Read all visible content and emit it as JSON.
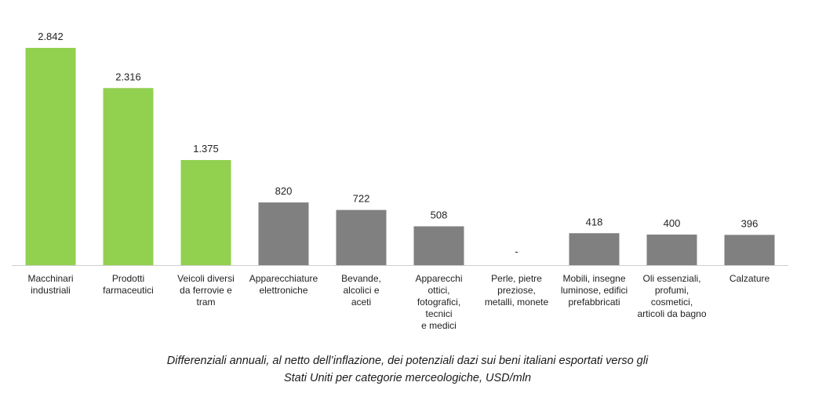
{
  "chart_data": {
    "type": "bar",
    "categories": [
      [
        "Macchinari",
        "industriali"
      ],
      [
        "Prodotti",
        "farmaceutici"
      ],
      [
        "Veicoli diversi",
        "da ferrovie e",
        "tram"
      ],
      [
        "Apparecchiature",
        "elettroniche"
      ],
      [
        "Bevande,",
        "alcolici e",
        "aceti"
      ],
      [
        "Apparecchi",
        "ottici,",
        "fotografici,",
        "tecnici",
        "e medici"
      ],
      [
        "Perle, pietre",
        "preziose,",
        "metalli, monete"
      ],
      [
        "Mobili, insegne",
        "luminose, edifici",
        "prefabbricati"
      ],
      [
        "Oli essenziali,",
        "profumi,",
        "cosmetici,",
        "articoli da bagno"
      ],
      [
        "Calzature"
      ]
    ],
    "values": [
      2842,
      2316,
      1375,
      820,
      722,
      508,
      0,
      418,
      400,
      396
    ],
    "value_labels": [
      "2.842",
      "2.316",
      "1.375",
      "820",
      "722",
      "508",
      "-",
      "418",
      "400",
      "396"
    ],
    "bar_colors": [
      "#92d050",
      "#92d050",
      "#92d050",
      "#808080",
      "#808080",
      "#808080",
      "#808080",
      "#808080",
      "#808080",
      "#808080"
    ],
    "ylim": [
      0,
      2842
    ],
    "grid": false,
    "legend": "none",
    "title": "",
    "xlabel": "",
    "ylabel": ""
  },
  "caption": {
    "line1": "Differenziali annuali, al netto dell’inflazione, dei potenziali dazi sui beni italiani esportati verso gli",
    "line2": "Stati Uniti per categorie merceologiche, USD/mln"
  }
}
